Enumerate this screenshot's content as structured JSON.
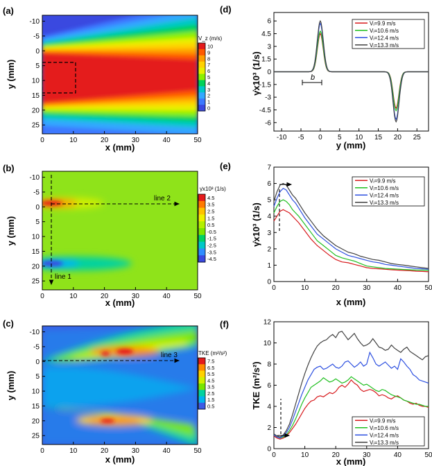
{
  "figure": {
    "panel_labels": [
      "(a)",
      "(b)",
      "(c)",
      "(d)",
      "(e)",
      "(f)"
    ]
  },
  "chart_data": [
    {
      "id": "a",
      "type": "heatmap",
      "xlabel": "x (mm)",
      "ylabel": "y (mm)",
      "xticks": [
        0,
        10,
        20,
        30,
        40,
        50
      ],
      "yticks": [
        -10,
        -5,
        0,
        5,
        10,
        15,
        20,
        25
      ],
      "xlim": [
        0,
        50
      ],
      "ylim": [
        -12,
        28
      ],
      "colorbar_title": "V_z (m/s)",
      "colorbar_levels": [
        "10",
        "9",
        "8",
        "7",
        "6",
        "5",
        "4",
        "3",
        "2",
        "1",
        "0"
      ],
      "colors": [
        "#e41a1c",
        "#ff5a00",
        "#ff9e00",
        "#ffd200",
        "#e8f000",
        "#8cf000",
        "#00d25a",
        "#00c8c8",
        "#33a8ff",
        "#3c78ff",
        "#3a49e0"
      ],
      "field": {
        "kind": "jet",
        "center_y": 10,
        "core_halfwidth_y0": 8.5,
        "core_halfwidth_y50": 5.5,
        "spread_y0": 9,
        "spread_y50": 24,
        "vmax": 10
      },
      "annotations": [
        {
          "text": "",
          "type": "dashed-box",
          "x": [
            0,
            11
          ],
          "y": [
            5,
            15
          ]
        }
      ]
    },
    {
      "id": "b",
      "type": "heatmap",
      "xlabel": "x (mm)",
      "ylabel": "y (mm)",
      "xticks": [
        0,
        10,
        20,
        30,
        40,
        50
      ],
      "yticks": [
        -10,
        -5,
        0,
        5,
        10,
        15,
        20,
        25
      ],
      "xlim": [
        0,
        50
      ],
      "ylim": [
        -12,
        28
      ],
      "colorbar_title": "γ̇x10³ (1/s)",
      "colorbar_levels": [
        "4.5",
        "3.5",
        "2.5",
        "1.5",
        "0.5",
        "-0.5",
        "-1.5",
        "-2.5",
        "-3.5",
        "-4.5"
      ],
      "colors": [
        "#e41a1c",
        "#ff7a00",
        "#ffc200",
        "#f0f000",
        "#b4f000",
        "#7ce600",
        "#00d264",
        "#00c8c8",
        "#2f8cff",
        "#3a49e0"
      ],
      "annotations": [
        {
          "text": "line 2",
          "type": "arrow",
          "x": [
            3,
            50
          ],
          "y": [
            0,
            0
          ]
        },
        {
          "text": "line 1",
          "type": "arrow",
          "x": [
            3,
            3
          ],
          "y": [
            -10,
            28
          ]
        }
      ]
    },
    {
      "id": "c",
      "type": "heatmap",
      "xlabel": "x (mm)",
      "ylabel": "y (mm)",
      "xticks": [
        0,
        10,
        20,
        30,
        40,
        50
      ],
      "yticks": [
        -10,
        -5,
        0,
        5,
        10,
        15,
        20,
        25
      ],
      "xlim": [
        0,
        50
      ],
      "ylim": [
        -12,
        28
      ],
      "colorbar_title": "TKE (m²/s²)",
      "colorbar_levels": [
        "7.5",
        "6.5",
        "5.5",
        "4.5",
        "3.5",
        "2.5",
        "1.5",
        "0.5"
      ],
      "colors": [
        "#e41a1c",
        "#ff8a00",
        "#ffd200",
        "#d2f000",
        "#78e600",
        "#00d2a0",
        "#00b4f0",
        "#3c5ce6"
      ],
      "annotations": [
        {
          "text": "line 3",
          "type": "arrow",
          "x": [
            0,
            50
          ],
          "y": [
            0,
            0
          ]
        }
      ]
    },
    {
      "id": "d",
      "type": "line",
      "xlabel": "y (mm)",
      "ylabel": "γ̇x10³ (1/s)",
      "xticks": [
        -10,
        -5,
        0,
        5,
        10,
        15,
        20,
        25
      ],
      "yticks": [
        -6,
        -4.5,
        -3,
        -1.5,
        0,
        1.5,
        3,
        4.5,
        6
      ],
      "xlim": [
        -12,
        28
      ],
      "ylim": [
        -7,
        7
      ],
      "legend_position": "top-right",
      "series": [
        {
          "name": "Vᵢ=9.9 m/s",
          "color": "#d7191c",
          "peak": 4.5,
          "trough": -4.3
        },
        {
          "name": "Vᵢ=10.6 m/s",
          "color": "#1fbf1f",
          "peak": 4.8,
          "trough": -4.6
        },
        {
          "name": "Vᵢ=12.4 m/s",
          "color": "#2c4fe0",
          "peak": 5.7,
          "trough": -5.6
        },
        {
          "name": "Vᵢ=13.3 m/s",
          "color": "#404040",
          "peak": 6.0,
          "trough": -5.9
        }
      ],
      "peak_y": 0,
      "trough_y": 19.6,
      "annotations": [
        {
          "text": "b",
          "type": "span",
          "x": [
            -2,
            3
          ],
          "y": -1.0
        }
      ]
    },
    {
      "id": "e",
      "type": "line",
      "xlabel": "x (mm)",
      "ylabel": "γ̇x10³ (1/s)",
      "xticks": [
        0,
        10,
        20,
        30,
        40,
        50
      ],
      "yticks": [
        0,
        1,
        2,
        3,
        4,
        5,
        6,
        7
      ],
      "xlim": [
        0,
        50
      ],
      "ylim": [
        0,
        7
      ],
      "legend_position": "top-right",
      "x": [
        0,
        1,
        2,
        3,
        4,
        5,
        6,
        7,
        8,
        10,
        12,
        14,
        16,
        18,
        20,
        22,
        24,
        26,
        28,
        30,
        32,
        34,
        36,
        38,
        40,
        42,
        44,
        46,
        48,
        50
      ],
      "series": [
        {
          "name": "Vᵢ=9.9 m/s",
          "color": "#d7191c",
          "values": [
            3.7,
            4.0,
            4.3,
            4.4,
            4.3,
            4.2,
            4.0,
            3.8,
            3.6,
            3.1,
            2.6,
            2.2,
            1.9,
            1.6,
            1.35,
            1.2,
            1.15,
            1.05,
            0.95,
            0.85,
            0.8,
            0.78,
            0.75,
            0.72,
            0.7,
            0.68,
            0.66,
            0.63,
            0.62,
            0.6
          ]
        },
        {
          "name": "Vᵢ=10.6 m/s",
          "color": "#1fbf1f",
          "values": [
            4.2,
            4.6,
            4.9,
            5.0,
            4.9,
            4.7,
            4.4,
            4.2,
            4.0,
            3.5,
            3.0,
            2.5,
            2.2,
            1.9,
            1.6,
            1.45,
            1.35,
            1.25,
            1.1,
            0.95,
            0.9,
            0.85,
            0.8,
            0.78,
            0.76,
            0.74,
            0.72,
            0.7,
            0.7,
            0.68
          ]
        },
        {
          "name": "Vᵢ=12.4 m/s",
          "color": "#2c4fe0",
          "values": [
            4.6,
            5.1,
            5.5,
            5.7,
            5.6,
            5.3,
            5.0,
            4.8,
            4.5,
            3.9,
            3.4,
            2.9,
            2.6,
            2.3,
            2.0,
            1.8,
            1.6,
            1.5,
            1.4,
            1.3,
            1.2,
            1.15,
            1.05,
            1.0,
            0.95,
            0.9,
            0.85,
            0.8,
            0.78,
            0.75
          ]
        },
        {
          "name": "Vᵢ=13.3 m/s",
          "color": "#404040",
          "values": [
            4.9,
            5.5,
            5.9,
            6.0,
            5.9,
            5.6,
            5.3,
            5.1,
            4.8,
            4.2,
            3.7,
            3.2,
            2.8,
            2.5,
            2.2,
            2.0,
            1.8,
            1.7,
            1.55,
            1.45,
            1.35,
            1.3,
            1.2,
            1.1,
            1.05,
            1.0,
            0.95,
            0.9,
            0.85,
            0.8
          ]
        }
      ],
      "annotations": [
        {
          "text": "",
          "type": "arrow",
          "x": [
            3,
            8
          ],
          "y": [
            6.0,
            6.0
          ]
        },
        {
          "text": "",
          "type": "dashed-vline",
          "x": 3,
          "y": [
            3.6,
            5.8
          ]
        }
      ]
    },
    {
      "id": "f",
      "type": "line",
      "xlabel": "x (mm)",
      "ylabel": "TKE (m²/s²)",
      "xticks": [
        0,
        10,
        20,
        30,
        40,
        50
      ],
      "yticks": [
        0,
        2,
        4,
        6,
        8,
        10,
        12
      ],
      "xlim": [
        0,
        50
      ],
      "ylim": [
        0,
        12
      ],
      "legend_position": "bottom-right",
      "x": [
        0,
        1,
        2,
        3,
        4,
        5,
        6,
        7,
        8,
        9,
        10,
        11,
        12,
        13,
        14,
        15,
        16,
        17,
        18,
        19,
        20,
        21,
        22,
        23,
        24,
        25,
        26,
        27,
        28,
        29,
        30,
        31,
        32,
        33,
        34,
        35,
        36,
        37,
        38,
        39,
        40,
        41,
        42,
        43,
        44,
        45,
        46,
        47,
        48,
        49,
        50
      ],
      "series": [
        {
          "name": "Vᵢ=9.9 m/s",
          "color": "#d7191c",
          "values": [
            1.2,
            1.0,
            0.9,
            1.0,
            1.2,
            1.5,
            1.9,
            2.3,
            2.8,
            3.3,
            3.8,
            4.2,
            4.5,
            4.6,
            4.9,
            5.0,
            4.9,
            5.1,
            5.3,
            5.2,
            5.4,
            5.8,
            6.0,
            5.8,
            6.1,
            6.5,
            6.2,
            6.0,
            5.6,
            5.4,
            5.5,
            5.6,
            5.5,
            5.3,
            5.0,
            5.1,
            5.0,
            4.8,
            4.7,
            4.9,
            5.0,
            4.8,
            4.6,
            4.5,
            4.3,
            4.2,
            4.3,
            4.1,
            4.0,
            4.0,
            3.9
          ]
        },
        {
          "name": "Vᵢ=10.6 m/s",
          "color": "#1fbf1f",
          "values": [
            1.3,
            1.1,
            1.0,
            1.1,
            1.3,
            1.7,
            2.2,
            2.8,
            3.5,
            4.2,
            4.8,
            5.3,
            5.8,
            6.0,
            6.2,
            6.4,
            6.7,
            6.5,
            6.3,
            6.4,
            6.6,
            6.4,
            6.2,
            6.3,
            6.5,
            6.8,
            6.6,
            6.4,
            6.2,
            6.0,
            6.1,
            5.9,
            5.7,
            5.5,
            5.4,
            5.6,
            5.5,
            5.3,
            5.1,
            5.0,
            4.9,
            4.8,
            4.6,
            4.5,
            4.4,
            4.3,
            4.2,
            4.2,
            4.1,
            4.0,
            4.0
          ]
        },
        {
          "name": "Vᵢ=12.4 m/s",
          "color": "#2c4fe0",
          "values": [
            1.3,
            1.1,
            1.0,
            1.2,
            1.5,
            2.0,
            2.7,
            3.5,
            4.3,
            5.1,
            5.8,
            6.5,
            7.0,
            7.5,
            7.7,
            7.8,
            7.5,
            7.6,
            7.8,
            8.0,
            7.7,
            7.6,
            7.8,
            8.2,
            8.3,
            8.0,
            7.7,
            7.9,
            8.2,
            7.8,
            8.0,
            9.1,
            8.6,
            8.0,
            7.8,
            8.0,
            8.2,
            7.9,
            7.6,
            7.8,
            7.5,
            8.5,
            8.2,
            7.8,
            7.5,
            7.0,
            6.8,
            6.5,
            6.4,
            6.3,
            6.2
          ]
        },
        {
          "name": "Vᵢ=13.3 m/s",
          "color": "#404040",
          "values": [
            1.4,
            1.2,
            1.1,
            1.3,
            1.7,
            2.3,
            3.2,
            4.2,
            5.2,
            6.2,
            7.1,
            7.9,
            8.6,
            9.2,
            9.7,
            10.0,
            10.2,
            10.3,
            10.6,
            10.8,
            10.5,
            11.0,
            11.1,
            10.7,
            10.3,
            10.6,
            10.9,
            10.4,
            10.0,
            9.7,
            9.8,
            10.0,
            10.4,
            10.0,
            9.6,
            9.5,
            9.3,
            9.4,
            9.8,
            9.5,
            9.3,
            9.1,
            9.4,
            9.6,
            9.2,
            9.0,
            8.8,
            8.6,
            8.4,
            8.7,
            8.8
          ]
        }
      ],
      "annotations": [
        {
          "text": "",
          "type": "arrow",
          "x": [
            2,
            6
          ],
          "y": [
            1.0,
            1.0
          ]
        },
        {
          "text": "",
          "type": "dashed-vline",
          "x": 3,
          "y": [
            1.5,
            4.5
          ]
        }
      ]
    }
  ]
}
